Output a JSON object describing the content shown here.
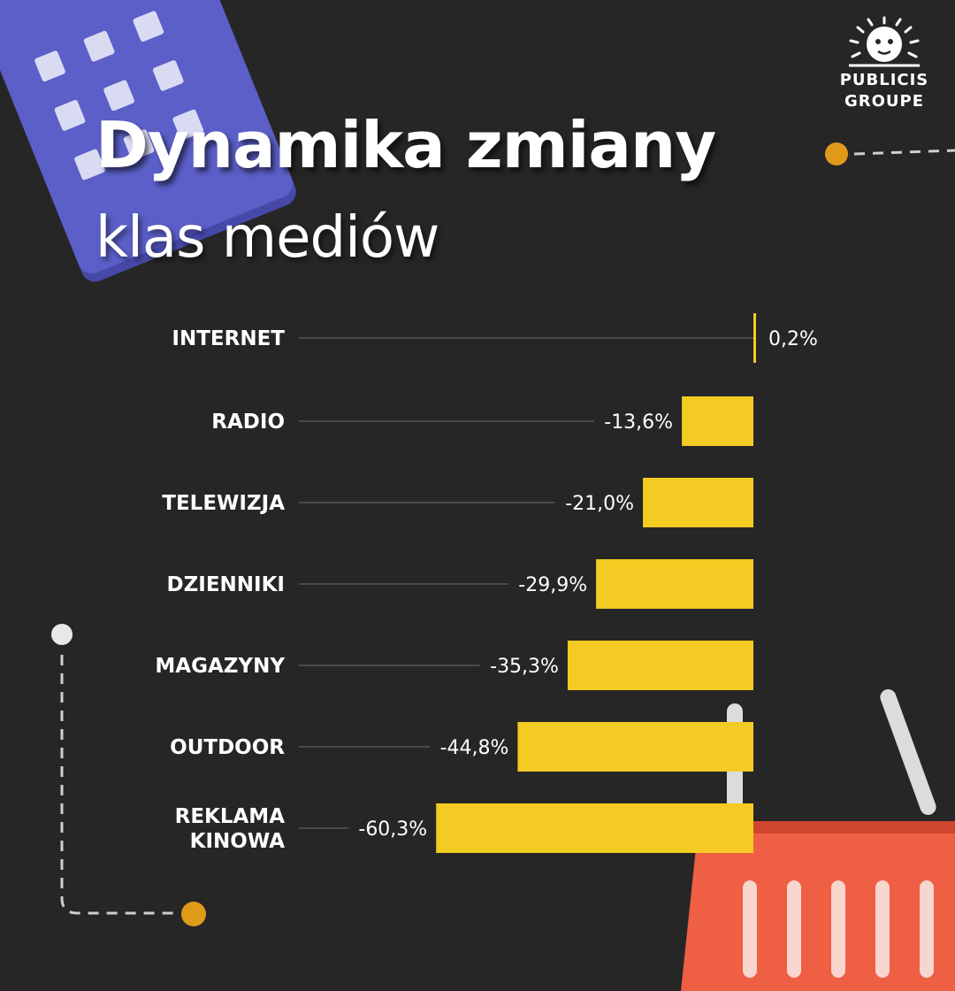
{
  "header": {
    "title": "Dynamika zmiany",
    "subtitle": "klas mediów"
  },
  "brand": {
    "line1": "PUBLICIS",
    "line2": "GROUPE"
  },
  "colors": {
    "background": "#262626",
    "bar": "#f4cb22",
    "accent_dot": "#e09a1a",
    "calendar": "#5b5fc7",
    "basket": "#ef5f44"
  },
  "chart_data": {
    "type": "bar",
    "orientation": "horizontal",
    "title": "Dynamika zmiany klas mediów",
    "categories": [
      "INTERNET",
      "RADIO",
      "TELEWIZJA",
      "DZIENNIKI",
      "MAGAZYNY",
      "OUTDOOR",
      "REKLAMA KINOWA"
    ],
    "values": [
      0.2,
      -13.6,
      -21.0,
      -29.9,
      -35.3,
      -44.8,
      -60.3
    ],
    "value_labels": [
      "0,2%",
      "-13,6%",
      "-21,0%",
      "-29,9%",
      "-35,3%",
      "-44,8%",
      "-60,3%"
    ],
    "unit": "%",
    "xlim": [
      -60.3,
      0.2
    ],
    "grid": false,
    "legend": "none"
  }
}
